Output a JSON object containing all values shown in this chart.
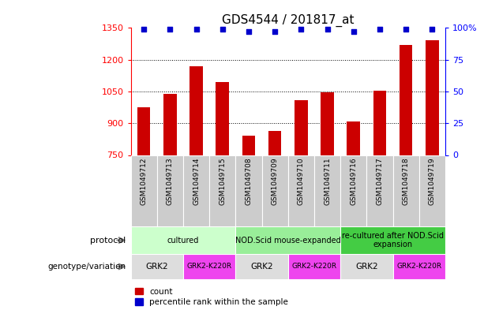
{
  "title": "GDS4544 / 201817_at",
  "samples": [
    "GSM1049712",
    "GSM1049713",
    "GSM1049714",
    "GSM1049715",
    "GSM1049708",
    "GSM1049709",
    "GSM1049710",
    "GSM1049711",
    "GSM1049716",
    "GSM1049717",
    "GSM1049718",
    "GSM1049719"
  ],
  "counts": [
    975,
    1040,
    1170,
    1095,
    840,
    865,
    1010,
    1045,
    910,
    1055,
    1270,
    1290
  ],
  "percentiles": [
    99,
    99,
    99,
    99,
    97,
    97,
    99,
    99,
    97,
    99,
    99,
    99
  ],
  "ylim_left": [
    750,
    1350
  ],
  "ylim_right": [
    0,
    100
  ],
  "yticks_left": [
    750,
    900,
    1050,
    1200,
    1350
  ],
  "yticks_right": [
    0,
    25,
    50,
    75,
    100
  ],
  "yticklabels_right": [
    "0",
    "25",
    "50",
    "75",
    "100%"
  ],
  "bar_color": "#cc0000",
  "dot_color": "#0000cc",
  "gridlines": [
    900,
    1050,
    1200
  ],
  "protocol_groups": [
    {
      "label": "cultured",
      "start": 0,
      "end": 3,
      "color": "#ccffcc"
    },
    {
      "label": "NOD.Scid mouse-expanded",
      "start": 4,
      "end": 7,
      "color": "#99ee99"
    },
    {
      "label": "re-cultured after NOD.Scid\nexpansion",
      "start": 8,
      "end": 11,
      "color": "#44cc44"
    }
  ],
  "genotype_groups": [
    {
      "label": "GRK2",
      "start": 0,
      "end": 1,
      "color": "#dddddd"
    },
    {
      "label": "GRK2-K220R",
      "start": 2,
      "end": 3,
      "color": "#ee44ee"
    },
    {
      "label": "GRK2",
      "start": 4,
      "end": 5,
      "color": "#dddddd"
    },
    {
      "label": "GRK2-K220R",
      "start": 6,
      "end": 7,
      "color": "#ee44ee"
    },
    {
      "label": "GRK2",
      "start": 8,
      "end": 9,
      "color": "#dddddd"
    },
    {
      "label": "GRK2-K220R",
      "start": 10,
      "end": 11,
      "color": "#ee44ee"
    }
  ],
  "sample_bg_color": "#cccccc",
  "legend_count_color": "#cc0000",
  "legend_pct_color": "#0000cc"
}
